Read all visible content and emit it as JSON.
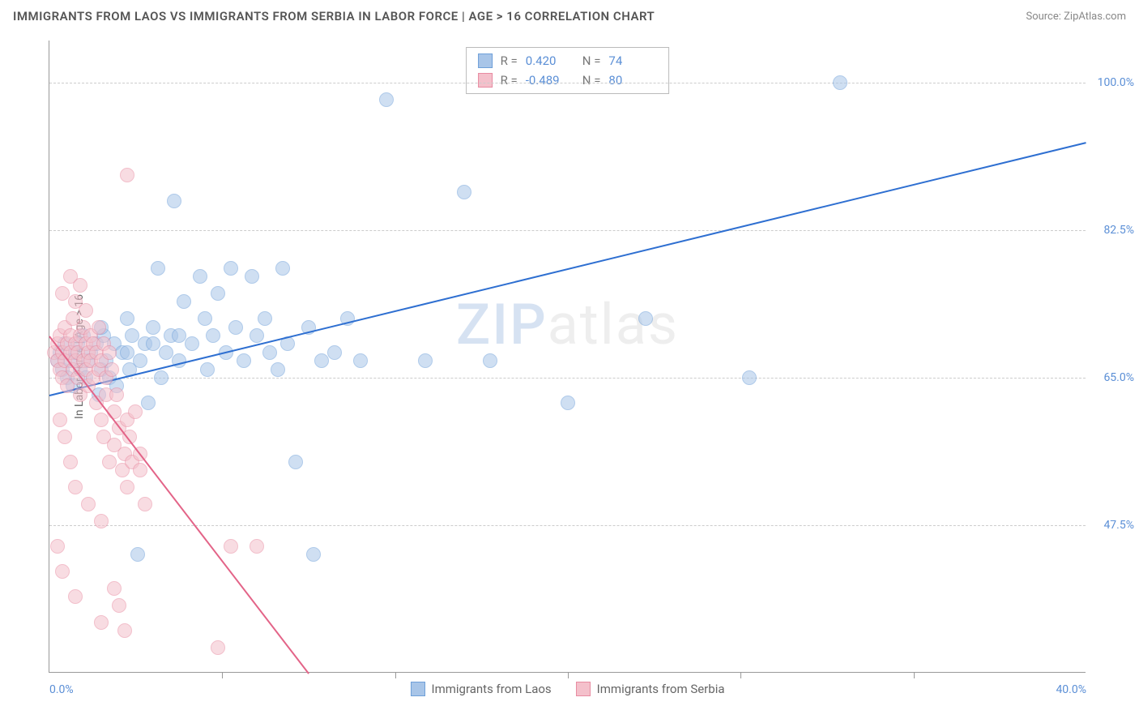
{
  "title": "IMMIGRANTS FROM LAOS VS IMMIGRANTS FROM SERBIA IN LABOR FORCE | AGE > 16 CORRELATION CHART",
  "source": "Source: ZipAtlas.com",
  "watermark": {
    "prefix": "ZIP",
    "suffix": "atlas"
  },
  "chart": {
    "type": "scatter",
    "y_axis_title": "In Labor Force | Age > 16",
    "xlim": [
      0,
      40
    ],
    "ylim": [
      30,
      105
    ],
    "x_ticks": [
      0,
      40
    ],
    "x_tick_labels": [
      "0.0%",
      "40.0%"
    ],
    "x_minor_ticks": [
      6.67,
      13.33,
      20,
      26.67,
      33.33
    ],
    "y_ticks": [
      47.5,
      65.0,
      82.5,
      100.0
    ],
    "y_tick_labels": [
      "47.5%",
      "65.0%",
      "82.5%",
      "100.0%"
    ],
    "background_color": "#ffffff",
    "grid_color": "#cccccc",
    "axis_color": "#999999",
    "tick_label_color": "#5b8fd6",
    "series": [
      {
        "name": "Immigrants from Laos",
        "color_fill": "#a8c5e8",
        "color_stroke": "#6fa0d9",
        "fill_opacity": 0.55,
        "marker_radius": 9,
        "trend": {
          "x1": 0,
          "y1": 63,
          "x2": 40,
          "y2": 93,
          "color": "#2e6fd1",
          "width": 2
        },
        "r_label": "R =",
        "r_value": "0.420",
        "n_label": "N =",
        "n_value": "74",
        "points": [
          [
            0.3,
            67
          ],
          [
            0.4,
            68
          ],
          [
            0.5,
            66
          ],
          [
            0.6,
            69
          ],
          [
            0.7,
            65
          ],
          [
            0.8,
            67
          ],
          [
            0.9,
            64
          ],
          [
            1.0,
            68
          ],
          [
            1.1,
            69
          ],
          [
            1.2,
            66
          ],
          [
            1.3,
            70
          ],
          [
            1.4,
            65
          ],
          [
            1.5,
            67
          ],
          [
            1.6,
            68
          ],
          [
            1.8,
            69
          ],
          [
            1.9,
            63
          ],
          [
            2.0,
            66
          ],
          [
            2.1,
            70
          ],
          [
            2.2,
            67
          ],
          [
            2.3,
            65
          ],
          [
            2.5,
            69
          ],
          [
            2.6,
            64
          ],
          [
            2.8,
            68
          ],
          [
            3.0,
            72
          ],
          [
            3.1,
            66
          ],
          [
            3.2,
            70
          ],
          [
            3.4,
            44
          ],
          [
            3.5,
            67
          ],
          [
            3.7,
            69
          ],
          [
            3.8,
            62
          ],
          [
            4.0,
            71
          ],
          [
            4.2,
            78
          ],
          [
            4.3,
            65
          ],
          [
            4.5,
            68
          ],
          [
            4.7,
            70
          ],
          [
            4.8,
            86
          ],
          [
            5.0,
            67
          ],
          [
            5.2,
            74
          ],
          [
            5.5,
            69
          ],
          [
            5.8,
            77
          ],
          [
            6.0,
            72
          ],
          [
            6.1,
            66
          ],
          [
            6.3,
            70
          ],
          [
            6.5,
            75
          ],
          [
            6.8,
            68
          ],
          [
            7.0,
            78
          ],
          [
            7.2,
            71
          ],
          [
            7.5,
            67
          ],
          [
            7.8,
            77
          ],
          [
            8.0,
            70
          ],
          [
            8.3,
            72
          ],
          [
            8.5,
            68
          ],
          [
            8.8,
            66
          ],
          [
            9.0,
            78
          ],
          [
            9.2,
            69
          ],
          [
            9.5,
            55
          ],
          [
            10.0,
            71
          ],
          [
            10.2,
            44
          ],
          [
            10.5,
            67
          ],
          [
            11.0,
            68
          ],
          [
            11.5,
            72
          ],
          [
            12.0,
            67
          ],
          [
            13.0,
            98
          ],
          [
            14.5,
            67
          ],
          [
            16.0,
            87
          ],
          [
            17.0,
            67
          ],
          [
            20.0,
            62
          ],
          [
            23.0,
            72
          ],
          [
            27.0,
            65
          ],
          [
            30.5,
            100
          ],
          [
            2.0,
            71
          ],
          [
            3.0,
            68
          ],
          [
            4.0,
            69
          ],
          [
            5.0,
            70
          ]
        ]
      },
      {
        "name": "Immigrants from Serbia",
        "color_fill": "#f4c0cb",
        "color_stroke": "#e88ba1",
        "fill_opacity": 0.55,
        "marker_radius": 9,
        "trend": {
          "x1": 0,
          "y1": 70,
          "x2": 10,
          "y2": 30,
          "color": "#e36488",
          "width": 2
        },
        "r_label": "R =",
        "r_value": "-0.489",
        "n_label": "N =",
        "n_value": "80",
        "points": [
          [
            0.2,
            68
          ],
          [
            0.3,
            67
          ],
          [
            0.3,
            69
          ],
          [
            0.4,
            66
          ],
          [
            0.4,
            70
          ],
          [
            0.5,
            68
          ],
          [
            0.5,
            65
          ],
          [
            0.6,
            67
          ],
          [
            0.6,
            71
          ],
          [
            0.7,
            69
          ],
          [
            0.7,
            64
          ],
          [
            0.8,
            68
          ],
          [
            0.8,
            70
          ],
          [
            0.9,
            66
          ],
          [
            0.9,
            72
          ],
          [
            1.0,
            67
          ],
          [
            1.0,
            69
          ],
          [
            1.1,
            65
          ],
          [
            1.1,
            68
          ],
          [
            1.2,
            70
          ],
          [
            1.2,
            63
          ],
          [
            1.3,
            67
          ],
          [
            1.3,
            71
          ],
          [
            1.4,
            66
          ],
          [
            1.4,
            69
          ],
          [
            1.5,
            68
          ],
          [
            1.5,
            64
          ],
          [
            1.6,
            67
          ],
          [
            1.6,
            70
          ],
          [
            1.7,
            65
          ],
          [
            1.7,
            69
          ],
          [
            1.8,
            68
          ],
          [
            1.8,
            62
          ],
          [
            1.9,
            66
          ],
          [
            1.9,
            71
          ],
          [
            2.0,
            67
          ],
          [
            2.0,
            60
          ],
          [
            2.1,
            69
          ],
          [
            2.1,
            58
          ],
          [
            2.2,
            65
          ],
          [
            2.2,
            63
          ],
          [
            2.3,
            68
          ],
          [
            2.3,
            55
          ],
          [
            2.4,
            66
          ],
          [
            2.5,
            61
          ],
          [
            2.5,
            57
          ],
          [
            2.6,
            63
          ],
          [
            2.7,
            59
          ],
          [
            2.8,
            54
          ],
          [
            2.9,
            56
          ],
          [
            3.0,
            60
          ],
          [
            3.0,
            52
          ],
          [
            3.1,
            58
          ],
          [
            3.2,
            55
          ],
          [
            3.3,
            61
          ],
          [
            3.5,
            56
          ],
          [
            3.7,
            50
          ],
          [
            0.5,
            75
          ],
          [
            0.8,
            77
          ],
          [
            1.0,
            74
          ],
          [
            1.2,
            76
          ],
          [
            1.4,
            73
          ],
          [
            0.4,
            60
          ],
          [
            0.6,
            58
          ],
          [
            0.8,
            55
          ],
          [
            1.0,
            52
          ],
          [
            1.5,
            50
          ],
          [
            2.0,
            48
          ],
          [
            2.5,
            40
          ],
          [
            2.7,
            38
          ],
          [
            2.9,
            35
          ],
          [
            3.0,
            89
          ],
          [
            0.3,
            45
          ],
          [
            0.5,
            42
          ],
          [
            1.0,
            39
          ],
          [
            2.0,
            36
          ],
          [
            3.5,
            54
          ],
          [
            6.5,
            33
          ],
          [
            7.0,
            45
          ],
          [
            8.0,
            45
          ]
        ]
      }
    ]
  },
  "legend_bottom": [
    {
      "label": "Immigrants from Laos",
      "fill": "#a8c5e8",
      "stroke": "#6fa0d9"
    },
    {
      "label": "Immigrants from Serbia",
      "fill": "#f4c0cb",
      "stroke": "#e88ba1"
    }
  ]
}
